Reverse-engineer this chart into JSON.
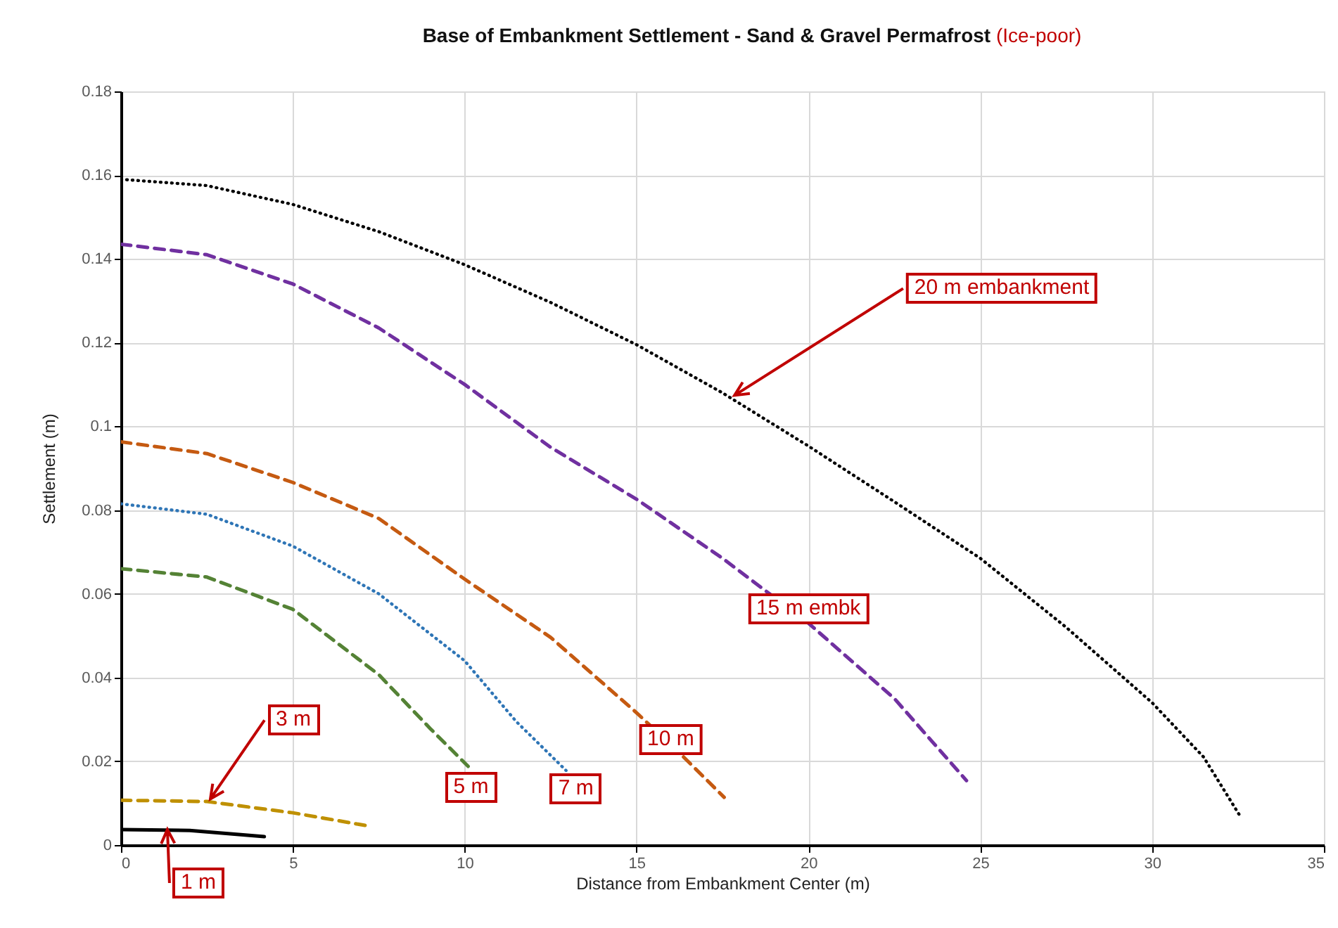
{
  "chart_data": {
    "type": "line",
    "title": "Base of Embankment Settlement - Sand & Gravel Permafrost",
    "subtitle": "(Ice-poor)",
    "xlabel": "Distance from Embankment Center (m)",
    "ylabel": "Settlement (m)",
    "xlim": [
      0,
      35
    ],
    "xticks": [
      0,
      5,
      10,
      15,
      20,
      25,
      30,
      35
    ],
    "ylim": [
      0,
      0.18
    ],
    "yticks": [
      0,
      0.02,
      0.04,
      0.06,
      0.08,
      0.1,
      0.12,
      0.14,
      0.16,
      0.18
    ],
    "grid": true,
    "marker": "none",
    "series": [
      {
        "color": "#000000",
        "line_style": "dotted",
        "x": [
          0,
          2.5,
          5,
          7.5,
          10,
          12.5,
          15,
          17.5,
          20,
          22.5,
          25,
          27.5,
          30,
          31.5,
          32.6
        ],
        "values": [
          0.159,
          0.1575,
          0.153,
          0.1465,
          0.1386,
          0.1296,
          0.1195,
          0.108,
          0.0953,
          0.082,
          0.0685,
          0.052,
          0.034,
          0.021,
          0.0064
        ]
      },
      {
        "color": "#7030a0",
        "line_style": "dashed",
        "x": [
          0,
          2.5,
          5,
          7.5,
          10,
          12.5,
          15,
          17.5,
          20,
          22.5,
          24.6
        ],
        "values": [
          0.1435,
          0.141,
          0.134,
          0.1235,
          0.11,
          0.095,
          0.0826,
          0.0685,
          0.053,
          0.035,
          0.0154
        ]
      },
      {
        "color": "#c55a11",
        "line_style": "dashed",
        "x": [
          0,
          2.5,
          5,
          7.5,
          10,
          12.5,
          15,
          16.25,
          17.55
        ],
        "values": [
          0.0963,
          0.0935,
          0.0866,
          0.078,
          0.0635,
          0.0496,
          0.0316,
          0.022,
          0.0114
        ]
      },
      {
        "color": "#2e75b6",
        "line_style": "dotted",
        "x": [
          0,
          2.5,
          5,
          7.5,
          10,
          11.5,
          12.95
        ],
        "values": [
          0.0815,
          0.079,
          0.0714,
          0.06,
          0.044,
          0.0295,
          0.0178
        ]
      },
      {
        "color": "#548235",
        "line_style": "dashed",
        "x": [
          0,
          2.5,
          5,
          7.5,
          9,
          10.1
        ],
        "values": [
          0.066,
          0.064,
          0.0563,
          0.0407,
          0.0278,
          0.0188
        ]
      },
      {
        "color": "#bf9000",
        "line_style": "dashed",
        "x": [
          0,
          2.5,
          5,
          7.1
        ],
        "values": [
          0.0107,
          0.0104,
          0.0077,
          0.0047
        ]
      },
      {
        "color": "#000000",
        "line_style": "solid",
        "x": [
          0,
          2,
          4.17
        ],
        "values": [
          0.0037,
          0.0035,
          0.002
        ]
      }
    ],
    "annotations": [
      {
        "text": "20 m embankment",
        "x": 17.85,
        "y": 0.1074
      },
      {
        "text": "15 m embk",
        "x": 20,
        "y": 0.053
      },
      {
        "text": "10 m",
        "x": 17.55,
        "y": 0.0114
      },
      {
        "text": "7 m",
        "x": 12.95,
        "y": 0.0178
      },
      {
        "text": "5 m",
        "x": 10.1,
        "y": 0.0188
      },
      {
        "text": "3 m",
        "x": 2.6,
        "y": 0.011
      },
      {
        "text": "1 m",
        "x": 1.35,
        "y": 0.0037
      }
    ]
  }
}
